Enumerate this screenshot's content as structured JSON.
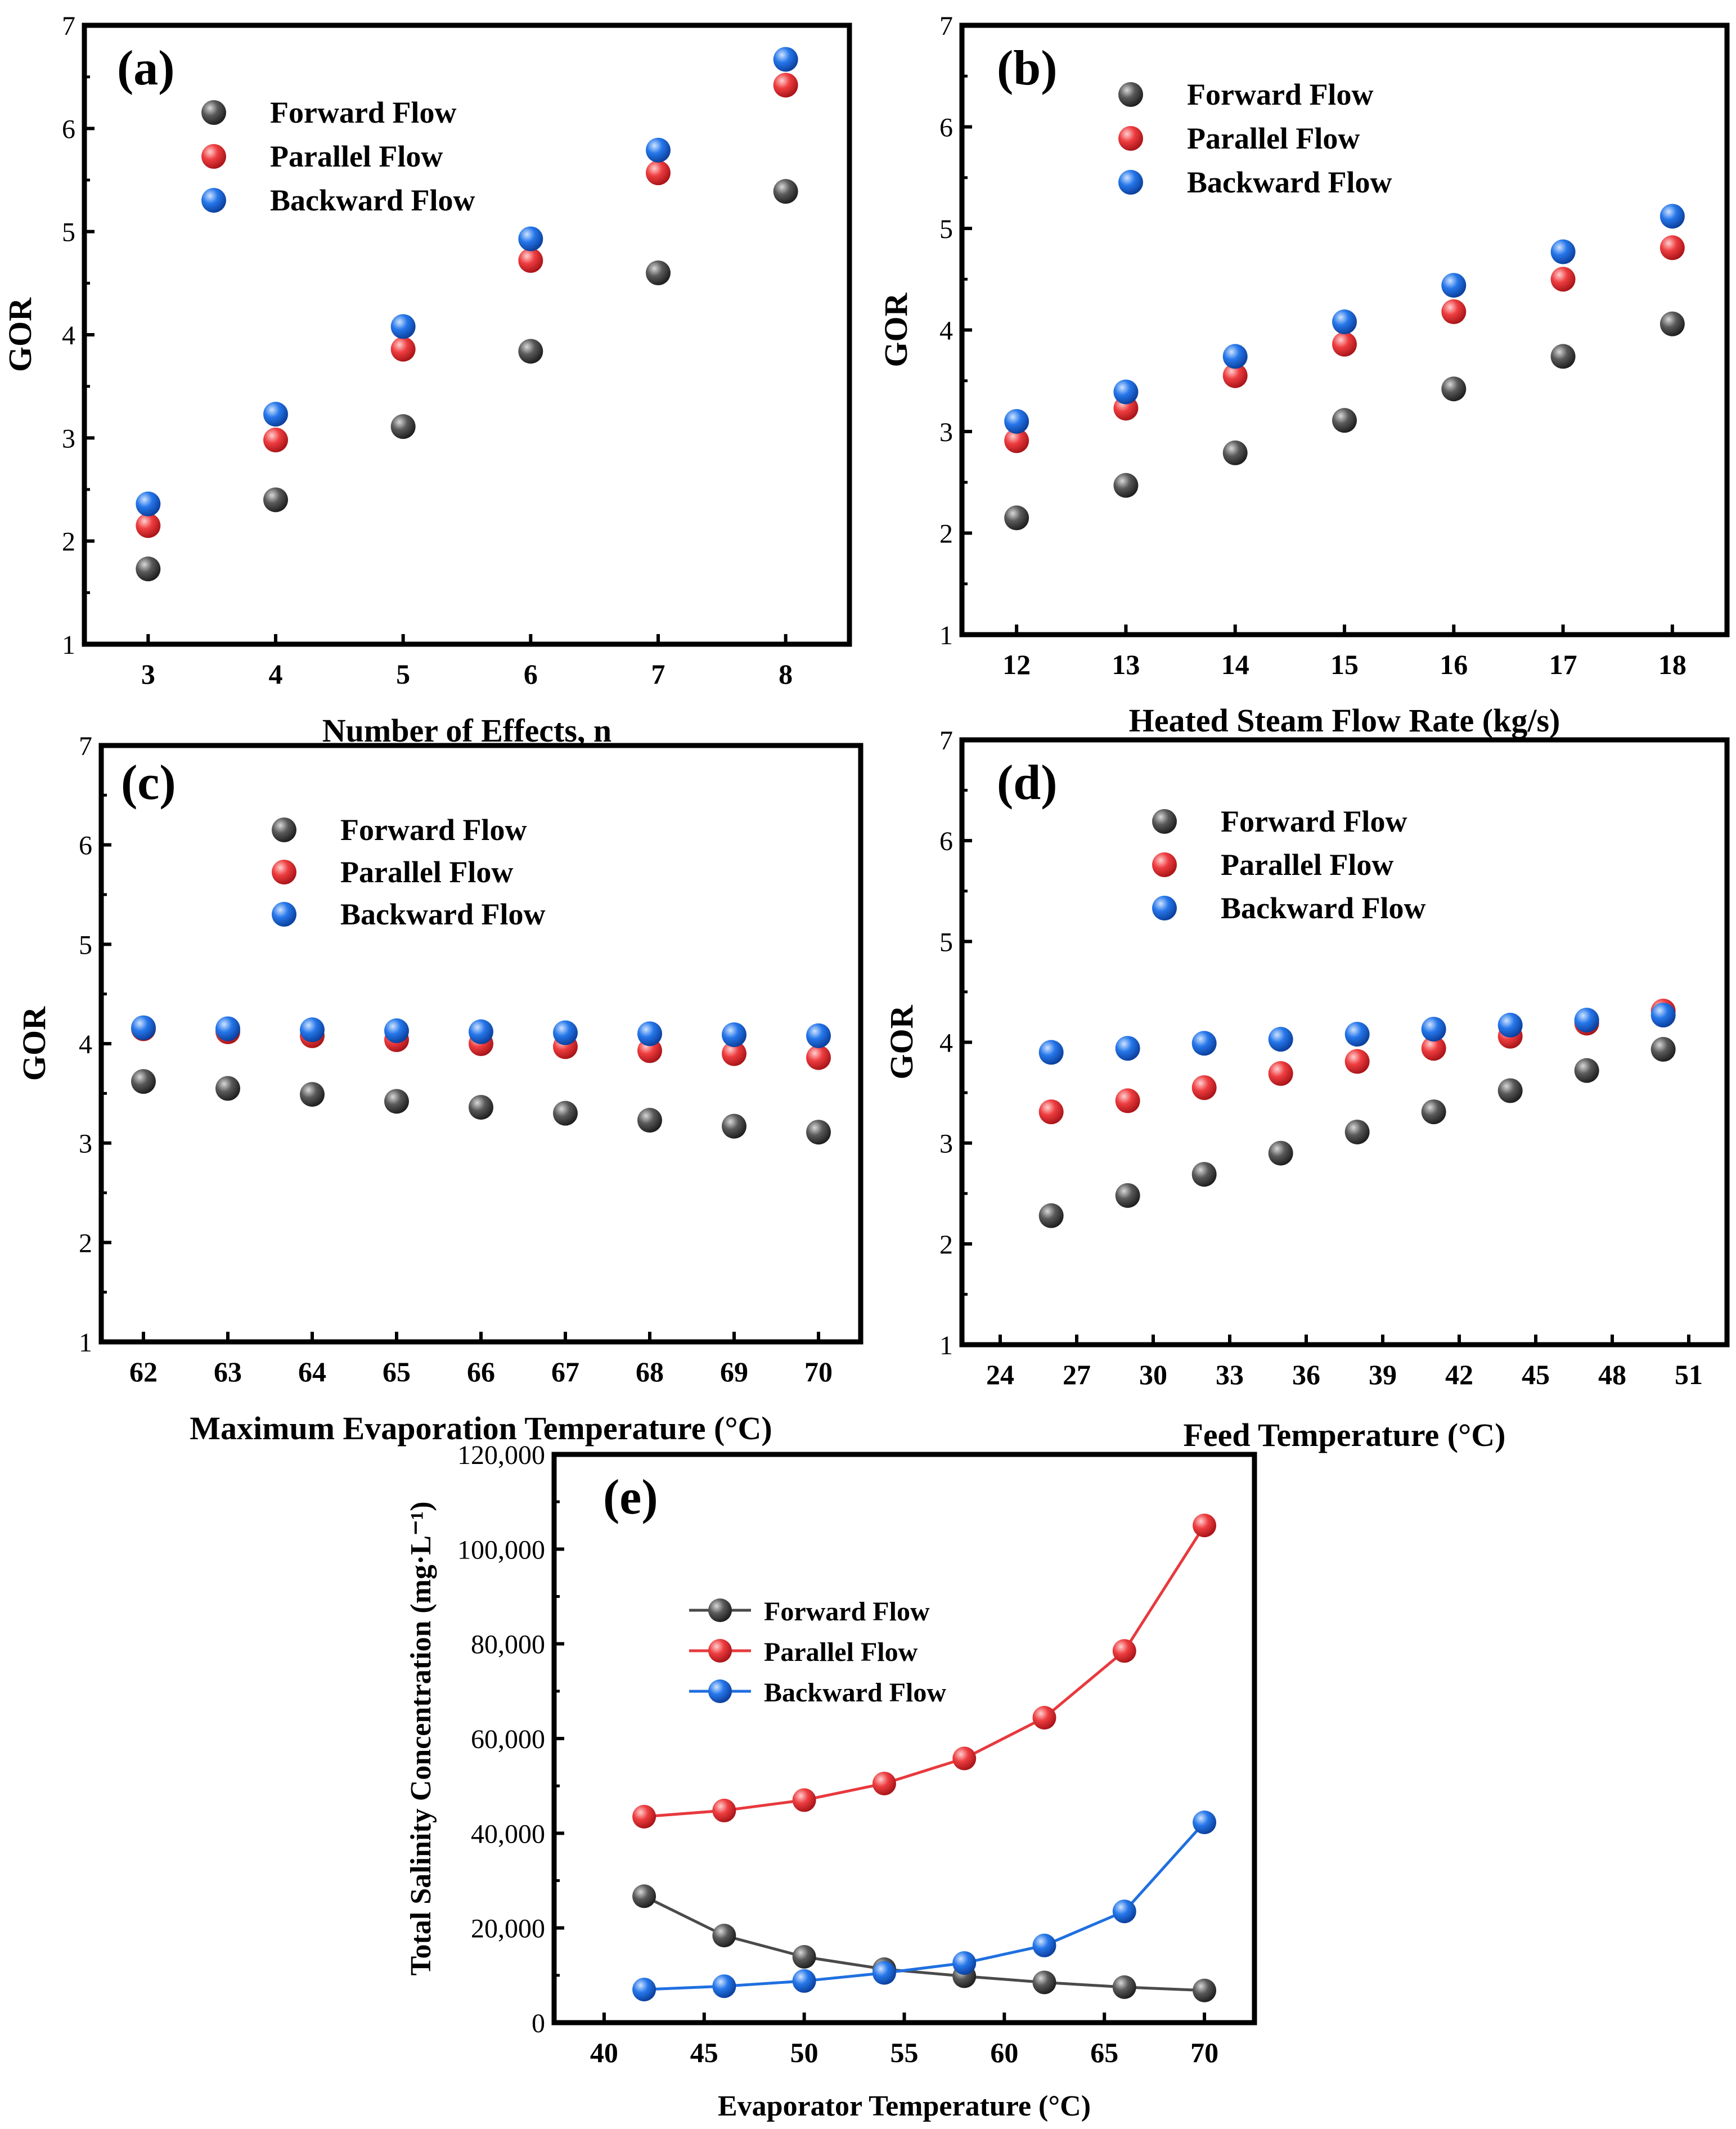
{
  "chart_data": [
    {
      "id": "a",
      "type": "scatter",
      "panel_label": "(a)",
      "xlabel": "Number of Effects, n",
      "ylabel": "GOR",
      "xlim": [
        2.5,
        8.5
      ],
      "ylim": [
        1,
        7
      ],
      "xticks": [
        3,
        4,
        5,
        6,
        7,
        8
      ],
      "yticks": [
        1,
        2,
        3,
        4,
        5,
        6,
        7
      ],
      "legend_position": "top-left",
      "x": [
        3,
        4,
        5,
        6,
        7,
        8
      ],
      "series": [
        {
          "name": "Forward Flow",
          "color": "#4a4a4a",
          "values": [
            1.73,
            2.4,
            3.11,
            3.84,
            4.6,
            5.39
          ]
        },
        {
          "name": "Parallel Flow",
          "color": "#e8393d",
          "values": [
            2.15,
            2.98,
            3.86,
            4.72,
            5.57,
            6.42
          ]
        },
        {
          "name": "Backward Flow",
          "color": "#1f6fe0",
          "values": [
            2.36,
            3.23,
            4.08,
            4.93,
            5.79,
            6.67
          ]
        }
      ]
    },
    {
      "id": "b",
      "type": "scatter",
      "panel_label": "(b)",
      "xlabel": "Heated Steam Flow Rate (kg/s)",
      "ylabel": "GOR",
      "xlim": [
        11.5,
        18.5
      ],
      "ylim": [
        1,
        7
      ],
      "xticks": [
        12,
        13,
        14,
        15,
        16,
        17,
        18
      ],
      "yticks": [
        1,
        2,
        3,
        4,
        5,
        6,
        7
      ],
      "legend_position": "top-left",
      "x": [
        12,
        13,
        14,
        15,
        16,
        17,
        18
      ],
      "series": [
        {
          "name": "Forward Flow",
          "color": "#4a4a4a",
          "values": [
            2.15,
            2.47,
            2.79,
            3.11,
            3.42,
            3.74,
            4.06
          ]
        },
        {
          "name": "Parallel  Flow",
          "color": "#e8393d",
          "values": [
            2.91,
            3.23,
            3.55,
            3.86,
            4.18,
            4.5,
            4.81
          ]
        },
        {
          "name": "Backward Flow",
          "color": "#1f6fe0",
          "values": [
            3.1,
            3.39,
            3.74,
            4.08,
            4.44,
            4.77,
            5.12
          ]
        }
      ]
    },
    {
      "id": "c",
      "type": "scatter",
      "panel_label": "(c)",
      "xlabel": "Maximum Evaporation Temperature (°C)",
      "ylabel": "GOR",
      "xlim": [
        61.5,
        70.5
      ],
      "ylim": [
        1,
        7
      ],
      "xticks": [
        62,
        63,
        64,
        65,
        66,
        67,
        68,
        69,
        70
      ],
      "yticks": [
        1,
        2,
        3,
        4,
        5,
        6,
        7
      ],
      "legend_position": "top-left",
      "x": [
        62,
        63,
        64,
        65,
        66,
        67,
        68,
        69,
        70
      ],
      "series": [
        {
          "name": "Forward Flow",
          "color": "#4a4a4a",
          "values": [
            3.62,
            3.55,
            3.49,
            3.42,
            3.36,
            3.3,
            3.23,
            3.17,
            3.11
          ]
        },
        {
          "name": "Parallel Flow",
          "color": "#e8393d",
          "values": [
            4.15,
            4.12,
            4.08,
            4.04,
            4.0,
            3.97,
            3.93,
            3.9,
            3.86
          ]
        },
        {
          "name": "Backward Flow",
          "color": "#1f6fe0",
          "values": [
            4.16,
            4.15,
            4.14,
            4.13,
            4.12,
            4.11,
            4.1,
            4.09,
            4.08
          ]
        }
      ]
    },
    {
      "id": "d",
      "type": "scatter",
      "panel_label": "(d)",
      "xlabel": "Feed Temperature (°C)",
      "ylabel": "GOR",
      "xlim": [
        22.5,
        52.5
      ],
      "ylim": [
        1,
        7
      ],
      "xticks": [
        24,
        27,
        30,
        33,
        36,
        39,
        42,
        45,
        48,
        51
      ],
      "yticks": [
        1,
        2,
        3,
        4,
        5,
        6,
        7
      ],
      "legend_position": "top-left",
      "x": [
        26,
        29,
        32,
        35,
        38,
        41,
        44,
        47,
        50
      ],
      "series": [
        {
          "name": "Forward Flow",
          "color": "#4a4a4a",
          "values": [
            2.28,
            2.48,
            2.69,
            2.9,
            3.11,
            3.31,
            3.52,
            3.72,
            3.93
          ]
        },
        {
          "name": "Parallel Flow",
          "color": "#e8393d",
          "values": [
            3.31,
            3.42,
            3.55,
            3.69,
            3.81,
            3.94,
            4.06,
            4.19,
            4.31
          ]
        },
        {
          "name": "Backward Flow",
          "color": "#1f6fe0",
          "values": [
            3.9,
            3.94,
            3.99,
            4.03,
            4.08,
            4.13,
            4.17,
            4.22,
            4.27
          ]
        }
      ]
    },
    {
      "id": "e",
      "type": "line",
      "panel_label": "(e)",
      "xlabel": "Evaporator Temperature (°C)",
      "ylabel": "Total Salinity Concentration (mg·L⁻¹)",
      "xlim": [
        37.5,
        72.5
      ],
      "ylim": [
        0,
        120000
      ],
      "xticks": [
        40,
        45,
        50,
        55,
        60,
        65,
        70
      ],
      "yticks": [
        0,
        20000,
        40000,
        60000,
        80000,
        100000,
        120000
      ],
      "ytick_labels": [
        "0",
        "20,000",
        "40,000",
        "60,000",
        "80,000",
        "100,000",
        "120,000"
      ],
      "legend_position": "upper-left",
      "x": [
        42,
        46,
        50,
        54,
        58,
        62,
        66,
        70
      ],
      "series": [
        {
          "name": "Forward Flow",
          "color": "#4a4a4a",
          "values": [
            26700,
            18400,
            13900,
            11300,
            9800,
            8500,
            7500,
            6800
          ]
        },
        {
          "name": "Parallel Flow",
          "color": "#e8393d",
          "values": [
            43500,
            44800,
            47000,
            50500,
            55800,
            64400,
            78500,
            105000
          ]
        },
        {
          "name": "Backward Flow",
          "color": "#1f6fe0",
          "values": [
            7000,
            7700,
            8800,
            10500,
            12600,
            16300,
            23500,
            42300
          ]
        }
      ]
    }
  ]
}
